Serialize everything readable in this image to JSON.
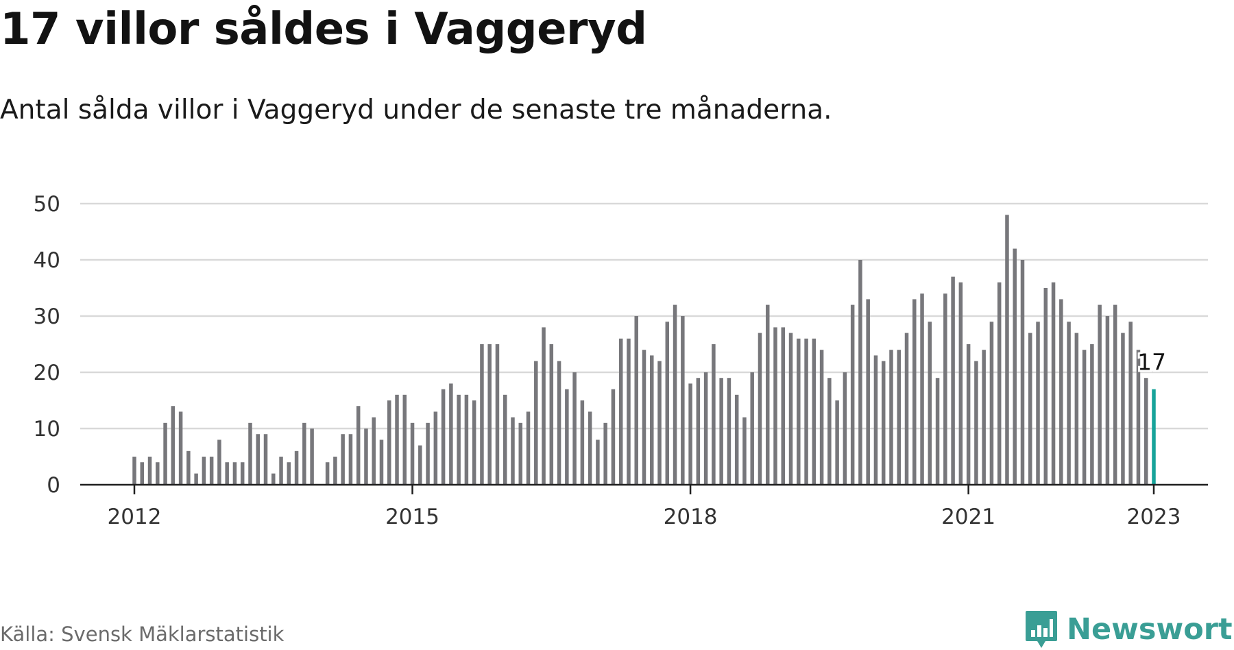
{
  "title": "17 villor såldes i Vaggeryd",
  "subtitle": "Antal sålda villor i Vaggeryd under de senaste tre månaderna.",
  "source": "Källa: Svensk Mäklarstatistik",
  "brand": {
    "name": "Newsworthy",
    "icon": "newsworthy-logo-icon",
    "color": "#3a9e95"
  },
  "colors": {
    "bar": "#77777b",
    "highlight": "#17a39a",
    "grid": "#d9d9d9",
    "axis": "#1f1f1f"
  },
  "chart_data": {
    "type": "bar",
    "title": "17 villor såldes i Vaggeryd",
    "xlabel": "",
    "ylabel": "",
    "x_start": "2012-01",
    "x_ticks": [
      "2012",
      "2015",
      "2018",
      "2021",
      "2023"
    ],
    "ylim": [
      0,
      50
    ],
    "y_ticks": [
      0,
      10,
      20,
      30,
      40,
      50
    ],
    "grid": true,
    "highlight": {
      "x": "2023-01",
      "value": 17,
      "label": "17"
    },
    "values": [
      5,
      4,
      5,
      4,
      11,
      14,
      13,
      6,
      2,
      5,
      5,
      8,
      4,
      4,
      4,
      11,
      9,
      9,
      2,
      5,
      4,
      6,
      11,
      10,
      null,
      4,
      5,
      9,
      9,
      14,
      10,
      12,
      8,
      15,
      16,
      16,
      11,
      7,
      11,
      13,
      17,
      18,
      16,
      16,
      15,
      25,
      25,
      25,
      16,
      12,
      11,
      13,
      22,
      28,
      25,
      22,
      17,
      20,
      15,
      13,
      8,
      11,
      17,
      26,
      26,
      30,
      24,
      23,
      22,
      29,
      32,
      30,
      18,
      19,
      20,
      25,
      19,
      19,
      16,
      12,
      20,
      27,
      32,
      28,
      28,
      27,
      26,
      26,
      26,
      24,
      19,
      15,
      20,
      32,
      40,
      33,
      23,
      22,
      24,
      24,
      27,
      33,
      34,
      29,
      19,
      34,
      37,
      36,
      25,
      22,
      24,
      29,
      36,
      48,
      42,
      40,
      27,
      29,
      35,
      36,
      33,
      29,
      27,
      24,
      25,
      32,
      30,
      32,
      27,
      29,
      24,
      19,
      17
    ]
  }
}
